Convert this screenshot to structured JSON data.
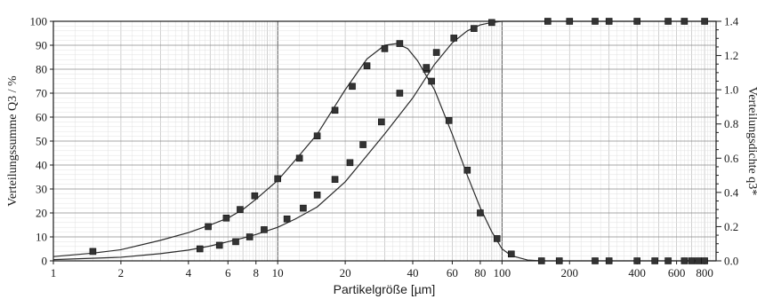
{
  "chart_data": {
    "type": "line",
    "xlabel": "Partikelgröße [µm]",
    "ylabel_left": "Verteilungssumme Q3 / %",
    "ylabel_right": "Verteilungsdichte q3*",
    "x_scale": "log",
    "xlim": [
      1,
      900
    ],
    "ylim_left": [
      0,
      100
    ],
    "ylim_right": [
      0,
      1.4
    ],
    "grid": true,
    "x_tick_labels": [
      "1",
      "2",
      "4",
      "6",
      "8",
      "10",
      "20",
      "40",
      "60",
      "80",
      "100",
      "200",
      "400",
      "600",
      "800"
    ],
    "y_left_tick_labels": [
      "0",
      "10",
      "20",
      "30",
      "40",
      "50",
      "60",
      "70",
      "80",
      "90",
      "100"
    ],
    "y_right_tick_labels": [
      "0.0",
      "0.2",
      "0.4",
      "0.6",
      "0.8",
      "1.0",
      "1.2",
      "1.4"
    ],
    "series": [
      {
        "axis": "left",
        "marker": "square",
        "curve": [
          [
            1,
            0.5
          ],
          [
            2,
            1.5
          ],
          [
            3,
            3
          ],
          [
            4,
            4.5
          ],
          [
            5,
            6.2
          ],
          [
            6,
            8
          ],
          [
            7,
            9.5
          ],
          [
            8,
            11
          ],
          [
            10,
            14
          ],
          [
            12,
            17.5
          ],
          [
            15,
            22.5
          ],
          [
            20,
            33
          ],
          [
            25,
            44
          ],
          [
            30,
            53
          ],
          [
            40,
            68
          ],
          [
            50,
            82
          ],
          [
            60,
            91
          ],
          [
            70,
            96
          ],
          [
            80,
            98.5
          ],
          [
            90,
            99.5
          ],
          [
            100,
            100
          ],
          [
            150,
            100
          ],
          [
            900,
            100
          ]
        ],
        "points": [
          [
            4.5,
            5
          ],
          [
            5.5,
            6.5
          ],
          [
            6.5,
            8
          ],
          [
            7.5,
            10
          ],
          [
            8.7,
            13
          ],
          [
            11,
            17.5
          ],
          [
            13,
            22
          ],
          [
            15,
            27.5
          ],
          [
            18,
            34
          ],
          [
            21,
            41
          ],
          [
            24,
            48.5
          ],
          [
            29,
            58
          ],
          [
            35,
            70
          ],
          [
            46,
            80
          ],
          [
            51,
            87
          ],
          [
            61,
            93
          ],
          [
            75,
            97
          ],
          [
            90,
            99.5
          ],
          [
            160,
            100
          ],
          [
            200,
            100
          ],
          [
            260,
            100
          ],
          [
            300,
            100
          ],
          [
            400,
            100
          ],
          [
            550,
            100
          ],
          [
            650,
            100
          ],
          [
            800,
            100
          ]
        ]
      },
      {
        "axis": "right",
        "marker": "square",
        "curve": [
          [
            1,
            0.025
          ],
          [
            1.5,
            0.045
          ],
          [
            2,
            0.065
          ],
          [
            3,
            0.12
          ],
          [
            4,
            0.165
          ],
          [
            5,
            0.21
          ],
          [
            6,
            0.25
          ],
          [
            7,
            0.3
          ],
          [
            8,
            0.36
          ],
          [
            10,
            0.47
          ],
          [
            12,
            0.59
          ],
          [
            15,
            0.74
          ],
          [
            20,
            1.0
          ],
          [
            25,
            1.18
          ],
          [
            30,
            1.26
          ],
          [
            34,
            1.27
          ],
          [
            38,
            1.24
          ],
          [
            42,
            1.17
          ],
          [
            50,
            1.0
          ],
          [
            60,
            0.74
          ],
          [
            70,
            0.5
          ],
          [
            80,
            0.31
          ],
          [
            90,
            0.17
          ],
          [
            100,
            0.07
          ],
          [
            110,
            0.03
          ],
          [
            130,
            0.005
          ],
          [
            150,
            0
          ],
          [
            900,
            0
          ]
        ],
        "points": [
          [
            1.5,
            0.055
          ],
          [
            4.9,
            0.2
          ],
          [
            5.9,
            0.25
          ],
          [
            6.8,
            0.3
          ],
          [
            7.9,
            0.38
          ],
          [
            10,
            0.48
          ],
          [
            12.5,
            0.6
          ],
          [
            15,
            0.73
          ],
          [
            18,
            0.88
          ],
          [
            21.5,
            1.02
          ],
          [
            25,
            1.14
          ],
          [
            30,
            1.24
          ],
          [
            35,
            1.27
          ],
          [
            46,
            1.13
          ],
          [
            48.5,
            1.05
          ],
          [
            58,
            0.82
          ],
          [
            70,
            0.53
          ],
          [
            80,
            0.28
          ],
          [
            95,
            0.13
          ],
          [
            110,
            0.04
          ],
          [
            150,
            0
          ],
          [
            180,
            0
          ],
          [
            260,
            0
          ],
          [
            300,
            0
          ],
          [
            400,
            0
          ],
          [
            480,
            0
          ],
          [
            550,
            0
          ],
          [
            650,
            0
          ],
          [
            700,
            0
          ],
          [
            750,
            0
          ],
          [
            800,
            0
          ]
        ]
      }
    ]
  }
}
